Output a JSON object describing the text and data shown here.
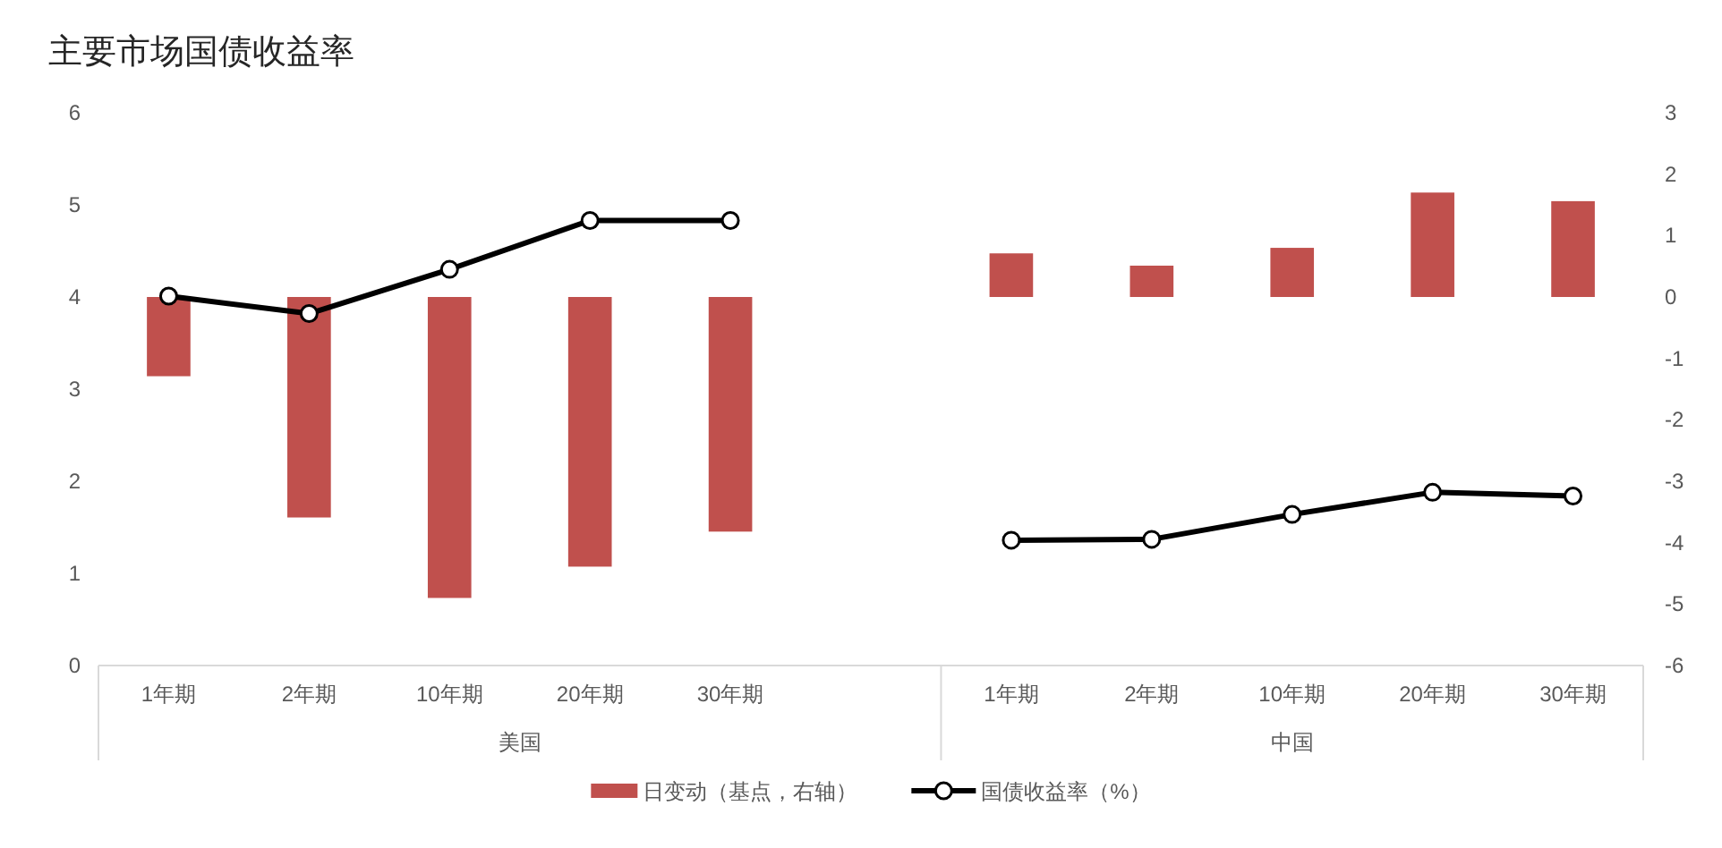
{
  "chart_data": {
    "type": "bar",
    "title": "主要市场国债收益率",
    "categories": [
      "1年期",
      "2年期",
      "10年期",
      "20年期",
      "30年期",
      null,
      "1年期",
      "2年期",
      "10年期",
      "20年期",
      "30年期"
    ],
    "series": [
      {
        "name": "日变动（基点，右轴）",
        "axis": "y2",
        "color": "#c0504d",
        "values": [
          -1.29,
          -3.59,
          -4.9,
          -4.39,
          -3.82,
          null,
          0.71,
          0.51,
          0.8,
          1.7,
          1.56
        ]
      },
      {
        "name": "国债收益率（%）",
        "type": "line",
        "color": "#000000",
        "marker": "circle",
        "values": [
          4.01,
          3.82,
          4.3,
          4.83,
          4.83,
          null,
          1.36,
          1.37,
          1.64,
          1.88,
          1.84
        ]
      }
    ],
    "ylim": [
      0,
      6
    ],
    "yticks": [
      0,
      1,
      2,
      3,
      4,
      5,
      6
    ],
    "y2lim": [
      -6,
      3
    ],
    "y2ticks": [
      -6,
      -5,
      -4,
      -3,
      -2,
      -1,
      0,
      1,
      2,
      3
    ],
    "annotations": [
      "美国",
      "中国"
    ],
    "legend": "bottom"
  }
}
